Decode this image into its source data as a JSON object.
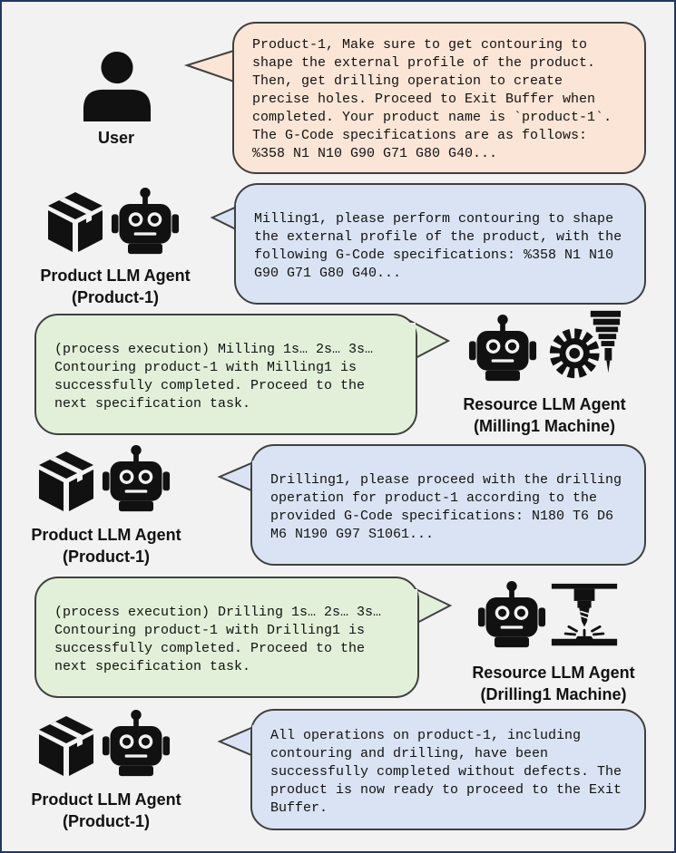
{
  "messages": [
    {
      "speaker": "user",
      "text": "Product-1, Make sure to get contouring to shape the external profile of the product. Then, get drilling operation to create precise holes. Proceed to Exit Buffer when completed. Your product name is `product-1`. The G-Code specifications are as follows: %358 N1 N10 G90 G71 G80 G40..."
    },
    {
      "speaker": "product_agent",
      "text": "Milling1, please perform contouring to shape the external profile of the product, with the following G-Code specifications: %358 N1 N10 G90 G71 G80 G40..."
    },
    {
      "speaker": "milling_agent",
      "text": "(process execution) Milling 1s… 2s… 3s… Contouring product-1 with Milling1 is successfully completed. Proceed to the next specification task."
    },
    {
      "speaker": "product_agent",
      "text": "Drilling1, please proceed with the drilling operation for product-1 according to the provided G-Code specifications: N180 T6 D6 M6 N190 G97 S1061..."
    },
    {
      "speaker": "drilling_agent",
      "text": "(process execution) Drilling 1s… 2s… 3s… Contouring product-1 with Drilling1 is successfully completed. Proceed to the next specification task."
    },
    {
      "speaker": "product_agent",
      "text": "All operations on product-1, including contouring and drilling, have been successfully completed without defects. The product is now ready to proceed to the Exit Buffer."
    }
  ],
  "actors": {
    "user": {
      "label": "User"
    },
    "product_agent": {
      "label_line1": "Product LLM Agent",
      "label_line2": "(Product-1)"
    },
    "milling_agent": {
      "label_line1": "Resource LLM Agent",
      "label_line2": "(Milling1 Machine)"
    },
    "drilling_agent": {
      "label_line1": "Resource LLM Agent",
      "label_line2": "(Drilling1 Machine)"
    }
  },
  "colors": {
    "user_bubble": "#fbe5d6",
    "product_bubble": "#dae3f3",
    "resource_bubble": "#e2f0d9",
    "border": "#1f3864"
  },
  "icons": [
    "person-icon",
    "box-icon",
    "robot-icon",
    "milling-machine-icon",
    "drill-press-icon"
  ]
}
